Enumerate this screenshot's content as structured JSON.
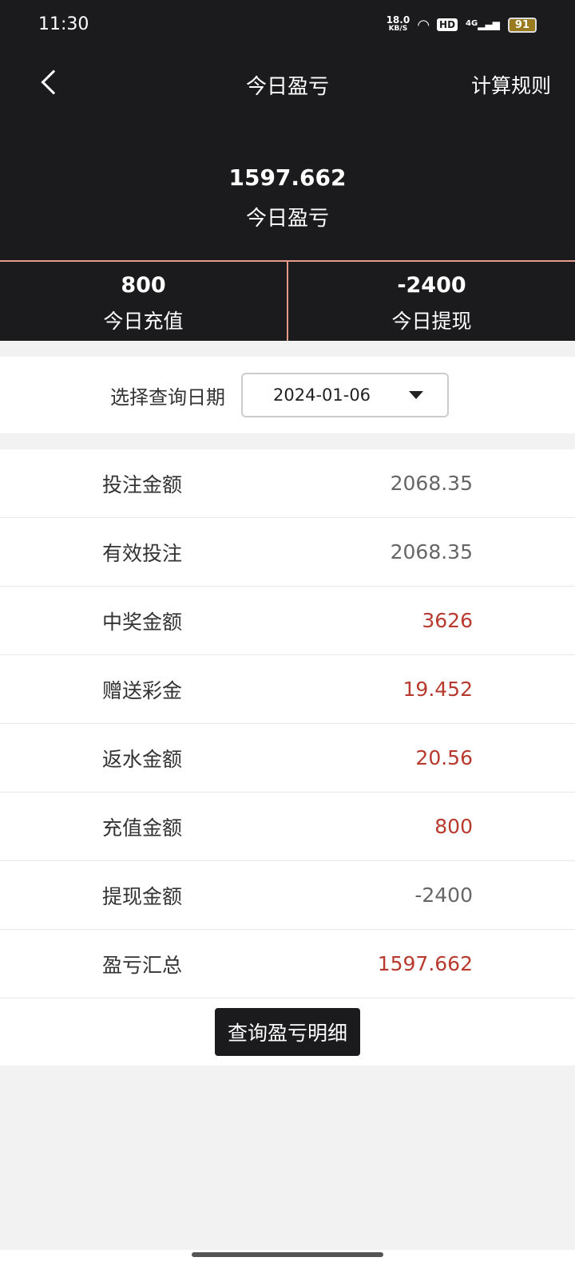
{
  "status": {
    "time": "11:30",
    "net_speed": "18.0",
    "net_unit": "KB/S",
    "hd": "HD",
    "signal": "4G",
    "battery": "91"
  },
  "header": {
    "title": "今日盈亏",
    "rules": "计算规则"
  },
  "total": {
    "value": "1597.662",
    "label": "今日盈亏"
  },
  "stats": [
    {
      "value": "800",
      "label": "今日充值"
    },
    {
      "value": "-2400",
      "label": "今日提现"
    }
  ],
  "date": {
    "label": "选择查询日期",
    "value": "2024-01-06"
  },
  "rows": [
    {
      "label": "投注金额",
      "value": "2068.35",
      "highlight": false
    },
    {
      "label": "有效投注",
      "value": "2068.35",
      "highlight": false
    },
    {
      "label": "中奖金额",
      "value": "3626",
      "highlight": true
    },
    {
      "label": "赠送彩金",
      "value": "19.452",
      "highlight": true
    },
    {
      "label": "返水金额",
      "value": "20.56",
      "highlight": true
    },
    {
      "label": "充值金额",
      "value": "800",
      "highlight": true
    },
    {
      "label": "提现金额",
      "value": "-2400",
      "highlight": false
    },
    {
      "label": "盈亏汇总",
      "value": "1597.662",
      "highlight": true
    }
  ],
  "button": "查询盈亏明细",
  "colors": {
    "dark": "#1b1b1d",
    "accent_line": "#e89a88",
    "positive": "#b83a2e"
  }
}
